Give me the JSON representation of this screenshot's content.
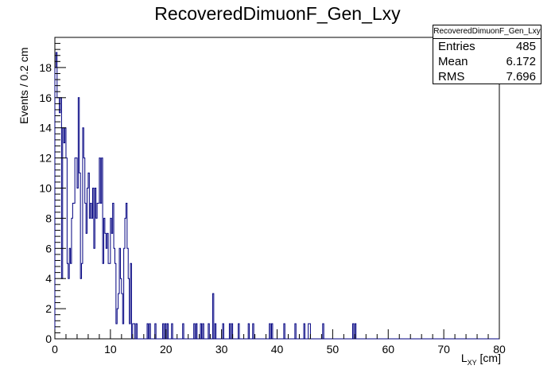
{
  "chart_data": {
    "type": "bar",
    "title": "RecoveredDimuonF_Gen_Lxy",
    "ylabel": "Events / 0.2 cm",
    "xlabel_main": "L",
    "xlabel_sub": "XY",
    "xlabel_unit": " [cm]",
    "xlim": [
      0,
      80
    ],
    "ylim": [
      0,
      20
    ],
    "bin_width": 0.2,
    "x_ticks": [
      "0",
      "10",
      "20",
      "30",
      "40",
      "50",
      "60",
      "70",
      "80"
    ],
    "y_ticks": [
      "0",
      "2",
      "4",
      "6",
      "8",
      "10",
      "12",
      "14",
      "16",
      "18"
    ],
    "line_color": "#000080",
    "stats": {
      "title": "RecoveredDimuonF_Gen_Lxy",
      "entries_label": "Entries",
      "entries": "485",
      "mean_label": "Mean",
      "mean": "6.172",
      "rms_label": "RMS",
      "rms": "7.696"
    },
    "bins_low": [
      18,
      19,
      16,
      16,
      15,
      16,
      4,
      14,
      13,
      14,
      12,
      5,
      4,
      6,
      5,
      8,
      9,
      9,
      12,
      12,
      10,
      16,
      11,
      4,
      5,
      14,
      12,
      9,
      7,
      10,
      11,
      8,
      9,
      8,
      10,
      6,
      10,
      8,
      9,
      9,
      12,
      9,
      12,
      5,
      8,
      7,
      6,
      7,
      5,
      5,
      8,
      7,
      9,
      6,
      5,
      8,
      2,
      3,
      6,
      4,
      3,
      4,
      6,
      8,
      9,
      6,
      4,
      6,
      5,
      0,
      1,
      1
    ],
    "sparse_bins": [
      [
        11.0,
        1
      ],
      [
        12.2,
        1
      ],
      [
        13.4,
        1
      ],
      [
        14.6,
        1
      ],
      [
        16.6,
        1
      ],
      [
        17.0,
        1
      ],
      [
        18.0,
        1
      ],
      [
        19.4,
        1
      ],
      [
        19.8,
        1
      ],
      [
        20.2,
        1
      ],
      [
        21.0,
        1
      ],
      [
        23.0,
        1
      ],
      [
        25.0,
        1
      ],
      [
        25.4,
        1
      ],
      [
        26.2,
        1
      ],
      [
        26.6,
        1
      ],
      [
        27.6,
        1
      ],
      [
        28.4,
        3
      ],
      [
        28.8,
        1
      ],
      [
        30.2,
        1
      ],
      [
        31.4,
        1
      ],
      [
        31.8,
        1
      ],
      [
        33.0,
        1
      ],
      [
        34.8,
        1
      ],
      [
        35.6,
        1
      ],
      [
        38.6,
        1
      ],
      [
        39.0,
        1
      ],
      [
        41.2,
        1
      ],
      [
        43.2,
        1
      ],
      [
        44.8,
        1
      ],
      [
        45.6,
        1
      ],
      [
        45.8,
        1
      ],
      [
        48.2,
        1
      ],
      [
        53.6,
        1
      ],
      [
        54.0,
        1
      ]
    ]
  }
}
